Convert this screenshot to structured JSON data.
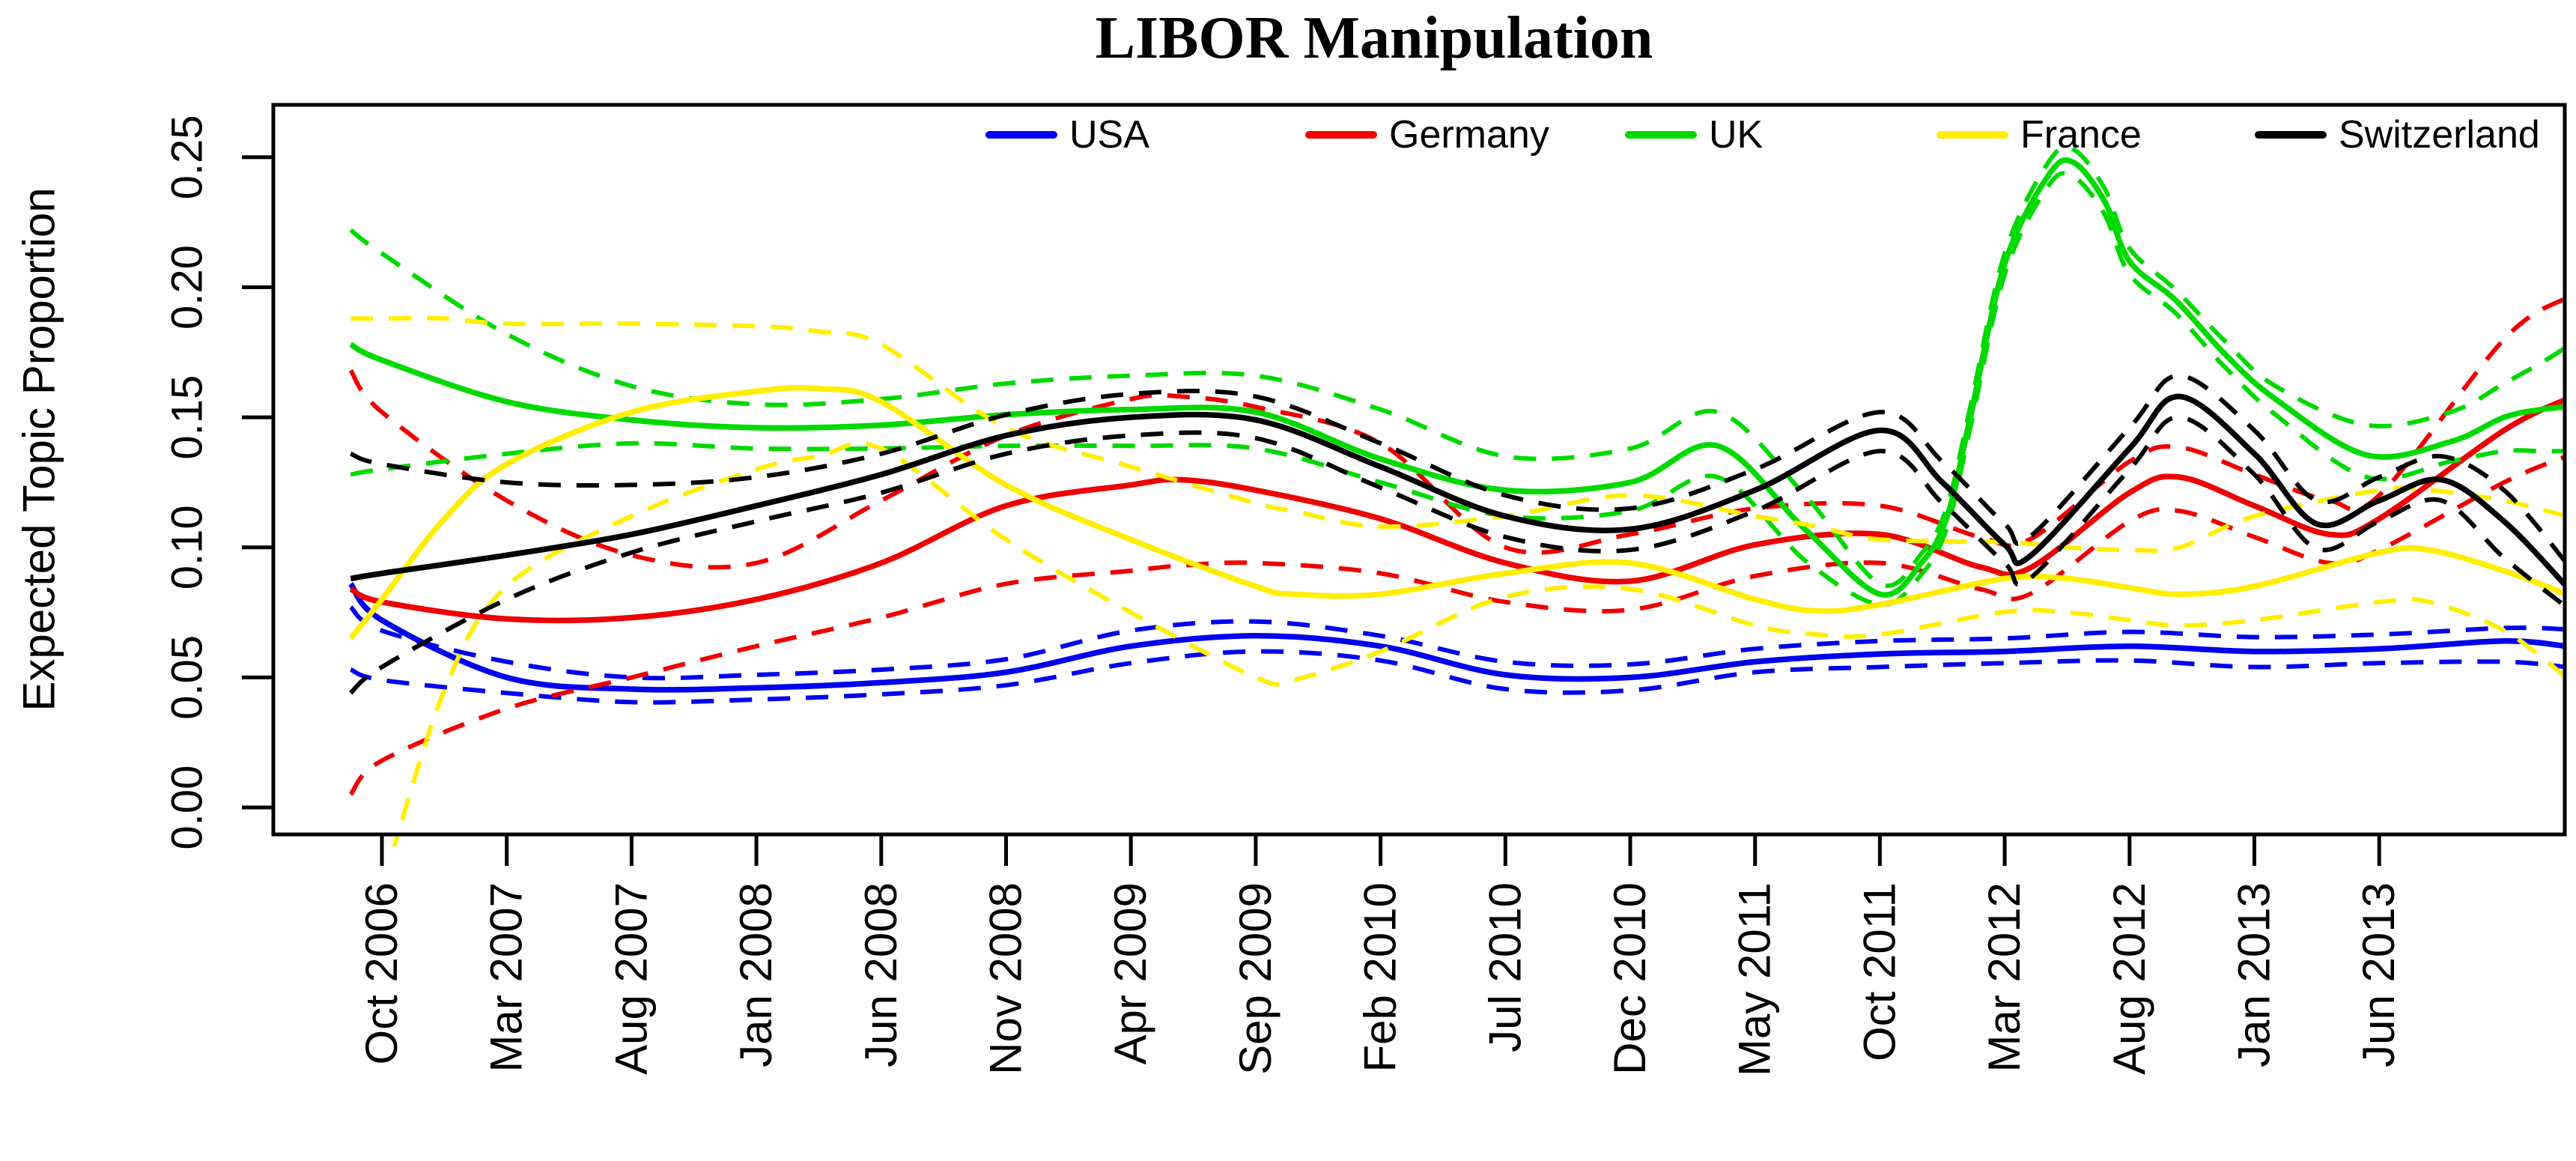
{
  "title": "LIBOR Manipulation",
  "legend": {
    "items": [
      {
        "label": "USA",
        "color": "#0000ee"
      },
      {
        "label": "Germany",
        "color": "#ee0000"
      },
      {
        "label": "UK",
        "color": "#00d900"
      },
      {
        "label": "France",
        "color": "#ffee00"
      },
      {
        "label": "Switzerland",
        "color": "#000000"
      }
    ]
  },
  "chart_data": {
    "type": "line",
    "title": "LIBOR Manipulation",
    "xlabel": "",
    "ylabel": "Expected Topic Proportion",
    "ylim": [
      0.0,
      0.25
    ],
    "y_tick_labels": [
      "0.00",
      "0.05",
      "0.10",
      "0.15",
      "0.20",
      "0.25"
    ],
    "y_tick_values": [
      0.0,
      0.05,
      0.1,
      0.15,
      0.2,
      0.25
    ],
    "x_tick_labels": [
      "Oct 2006",
      "Mar 2007",
      "Aug 2007",
      "Jan 2008",
      "Jun 2008",
      "Nov 2008",
      "Apr 2009",
      "Sep 2009",
      "Feb 2010",
      "Jul 2010",
      "Dec 2010",
      "May 2011",
      "Oct 2011",
      "Mar 2012",
      "Aug 2012",
      "Jan 2013",
      "Jun 2013"
    ],
    "x_unit": "tick index, 5-month spacing starting Oct 2006",
    "grid": false,
    "legend_position": "top-inside",
    "band_style": "dashed 95% confidence bands",
    "series": [
      {
        "name": "USA",
        "color": "#0000ee",
        "x": [
          -0.25,
          0,
          1,
          2,
          3,
          4,
          5,
          6,
          7,
          8,
          9,
          10,
          11,
          12,
          13,
          14,
          15,
          16,
          17,
          17.5
        ],
        "mean": [
          0.086,
          0.072,
          0.05,
          0.0455,
          0.046,
          0.048,
          0.052,
          0.062,
          0.066,
          0.062,
          0.051,
          0.05,
          0.056,
          0.059,
          0.06,
          0.062,
          0.06,
          0.061,
          0.064,
          0.062
        ],
        "upper": [
          0.077,
          0.068,
          0.056,
          0.05,
          0.051,
          0.053,
          0.057,
          0.068,
          0.0715,
          0.066,
          0.056,
          0.055,
          0.061,
          0.064,
          0.065,
          0.0675,
          0.0655,
          0.0665,
          0.069,
          0.0685
        ],
        "lower": [
          0.053,
          0.049,
          0.044,
          0.0405,
          0.0415,
          0.0435,
          0.047,
          0.0555,
          0.06,
          0.0565,
          0.0455,
          0.045,
          0.052,
          0.054,
          0.0555,
          0.0565,
          0.054,
          0.0555,
          0.056,
          0.054
        ]
      },
      {
        "name": "Germany",
        "color": "#ee0000",
        "x": [
          -0.25,
          0,
          1,
          2,
          3,
          4,
          5,
          6,
          6.4,
          7,
          8,
          9,
          10,
          11,
          12,
          12.8,
          13.2,
          14,
          14.4,
          15,
          15.6,
          16,
          17,
          17.5
        ],
        "mean": [
          0.084,
          0.079,
          0.0725,
          0.073,
          0.08,
          0.094,
          0.116,
          0.124,
          0.126,
          0.122,
          0.111,
          0.094,
          0.087,
          0.101,
          0.105,
          0.0925,
          0.092,
          0.121,
          0.127,
          0.116,
          0.105,
          0.111,
          0.145,
          0.157
        ],
        "upper": [
          0.168,
          0.152,
          0.118,
          0.097,
          0.094,
          0.118,
          0.143,
          0.157,
          0.158,
          0.154,
          0.14,
          0.1,
          0.105,
          0.115,
          0.116,
          0.104,
          0.103,
          0.133,
          0.1385,
          0.128,
          0.118,
          0.12,
          0.18,
          0.196
        ],
        "lower": [
          0.005,
          0.018,
          0.038,
          0.05,
          0.062,
          0.073,
          0.086,
          0.091,
          0.093,
          0.094,
          0.09,
          0.079,
          0.076,
          0.089,
          0.094,
          0.084,
          0.082,
          0.11,
          0.114,
          0.104,
          0.094,
          0.099,
          0.125,
          0.135
        ]
      },
      {
        "name": "UK",
        "color": "#00d900",
        "x": [
          -0.25,
          0,
          1,
          2,
          3,
          4,
          5,
          6,
          7,
          8,
          9,
          10,
          10.7,
          11.4,
          12,
          12.34,
          12.54,
          12.72,
          13,
          13.35,
          13.55,
          13.8,
          14,
          14.37,
          14.77,
          15.17,
          15.9,
          16.57,
          17,
          17.3,
          17.5
        ],
        "mean": [
          0.178,
          0.172,
          0.156,
          0.149,
          0.146,
          0.147,
          0.151,
          0.153,
          0.152,
          0.134,
          0.122,
          0.125,
          0.139,
          0.107,
          0.082,
          0.0945,
          0.112,
          0.149,
          0.209,
          0.243,
          0.248,
          0.233,
          0.21,
          0.195,
          0.174,
          0.157,
          0.1355,
          0.1406,
          0.15,
          0.153,
          0.154
        ],
        "upper": [
          0.222,
          0.213,
          0.182,
          0.162,
          0.155,
          0.157,
          0.163,
          0.166,
          0.166,
          0.153,
          0.135,
          0.138,
          0.152,
          0.12,
          0.086,
          0.098,
          0.116,
          0.153,
          0.213,
          0.248,
          0.253,
          0.238,
          0.215,
          0.199,
          0.179,
          0.162,
          0.147,
          0.152,
          0.163,
          0.171,
          0.177
        ],
        "lower": [
          0.128,
          0.13,
          0.136,
          0.14,
          0.138,
          0.138,
          0.139,
          0.139,
          0.138,
          0.125,
          0.112,
          0.114,
          0.127,
          0.095,
          0.078,
          0.09,
          0.108,
          0.145,
          0.205,
          0.239,
          0.2425,
          0.228,
          0.205,
          0.19,
          0.169,
          0.151,
          0.127,
          0.133,
          0.137,
          0.137,
          0.137
        ]
      },
      {
        "name": "France",
        "color": "#ffee00",
        "x": [
          -0.25,
          0,
          0.5,
          1,
          2,
          3,
          3.5,
          4,
          5,
          6,
          7,
          7.3,
          8,
          9,
          10,
          11,
          11.5,
          12,
          13,
          13.5,
          14,
          14.4,
          15,
          16,
          16.4,
          17,
          17.5
        ],
        "mean": [
          0.065,
          0.08,
          0.111,
          0.132,
          0.152,
          0.16,
          0.161,
          0.156,
          0.124,
          0.103,
          0.085,
          0.082,
          0.082,
          0.09,
          0.094,
          0.08,
          0.0755,
          0.078,
          0.088,
          0.088,
          0.0845,
          0.082,
          0.085,
          0.098,
          0.099,
          0.091,
          0.082
        ],
        "upper": [
          0.188,
          0.188,
          0.188,
          0.186,
          0.186,
          0.185,
          0.183,
          0.178,
          0.146,
          0.131,
          0.117,
          0.114,
          0.108,
          0.112,
          0.12,
          0.112,
          0.108,
          0.103,
          0.102,
          0.1,
          0.099,
          0.1,
          0.112,
          0.122,
          0.122,
          0.118,
          0.112
        ],
        "lower": [
          -0.06,
          -0.03,
          0.045,
          0.085,
          0.112,
          0.13,
          0.135,
          0.138,
          0.103,
          0.075,
          0.05,
          0.049,
          0.06,
          0.081,
          0.084,
          0.07,
          0.0665,
          0.0665,
          0.0752,
          0.075,
          0.072,
          0.07,
          0.072,
          0.079,
          0.079,
          0.068,
          0.05
        ]
      },
      {
        "name": "Switzerland",
        "color": "#000000",
        "x": [
          -0.25,
          0,
          1,
          2,
          3,
          4,
          5,
          6,
          7,
          8,
          9,
          10,
          11,
          12,
          12.5,
          13,
          13.2,
          14,
          14.4,
          15,
          15.5,
          16,
          16.5,
          17,
          17.5
        ],
        "mean": [
          0.088,
          0.09,
          0.097,
          0.105,
          0.116,
          0.128,
          0.143,
          0.15,
          0.149,
          0.131,
          0.112,
          0.107,
          0.122,
          0.145,
          0.125,
          0.101,
          0.0965,
          0.138,
          0.158,
          0.136,
          0.109,
          0.118,
          0.126,
          0.11,
          0.085
        ],
        "upper": [
          0.136,
          0.132,
          0.125,
          0.124,
          0.127,
          0.136,
          0.151,
          0.159,
          0.158,
          0.14,
          0.12,
          0.115,
          0.13,
          0.152,
          0.133,
          0.109,
          0.104,
          0.146,
          0.166,
          0.145,
          0.118,
          0.127,
          0.135,
          0.122,
          0.094
        ],
        "lower": [
          0.044,
          0.054,
          0.08,
          0.098,
          0.11,
          0.121,
          0.136,
          0.143,
          0.142,
          0.123,
          0.104,
          0.099,
          0.114,
          0.137,
          0.117,
          0.094,
          0.088,
          0.13,
          0.15,
          0.128,
          0.0995,
          0.11,
          0.118,
          0.096,
          0.077
        ]
      }
    ]
  }
}
